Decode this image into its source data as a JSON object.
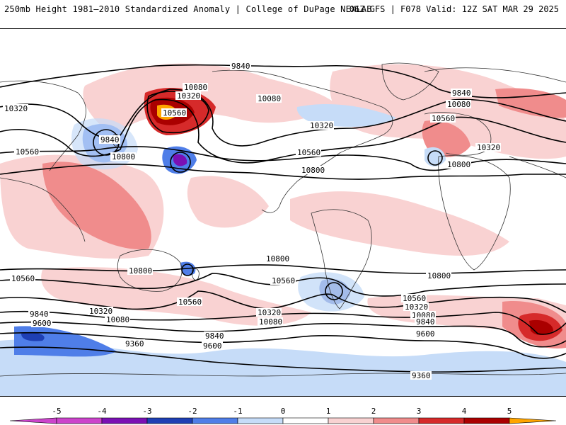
{
  "header": {
    "title": "250mb Height 1981–2010 Standardized Anomaly | College of DuPage NEXLAB",
    "run_info": "06Z GFS | F078 Valid: 12Z SAT MAR 29 2025"
  },
  "contour_labels": {
    "c9840": "9840",
    "c10080": "10080",
    "c10320": "10320",
    "c10560": "10560",
    "c10800": "10800",
    "c9600": "9600",
    "c9360": "9360"
  },
  "colorbar": {
    "ticks": [
      "-5",
      "-4",
      "-3",
      "-2",
      "-1",
      "0",
      "1",
      "2",
      "3",
      "4",
      "5"
    ],
    "colors": {
      "neg5": "#cc44cc",
      "neg4": "#7a10b4",
      "neg3": "#1e3fb4",
      "neg2": "#4f7ee8",
      "neg1": "#c6dcf8",
      "zero": "#ffffff",
      "pos1": "#f9d2d2",
      "pos2": "#f08c8c",
      "pos3": "#d62a2a",
      "pos4": "#aa0000",
      "pos5": "#ffa500"
    }
  }
}
